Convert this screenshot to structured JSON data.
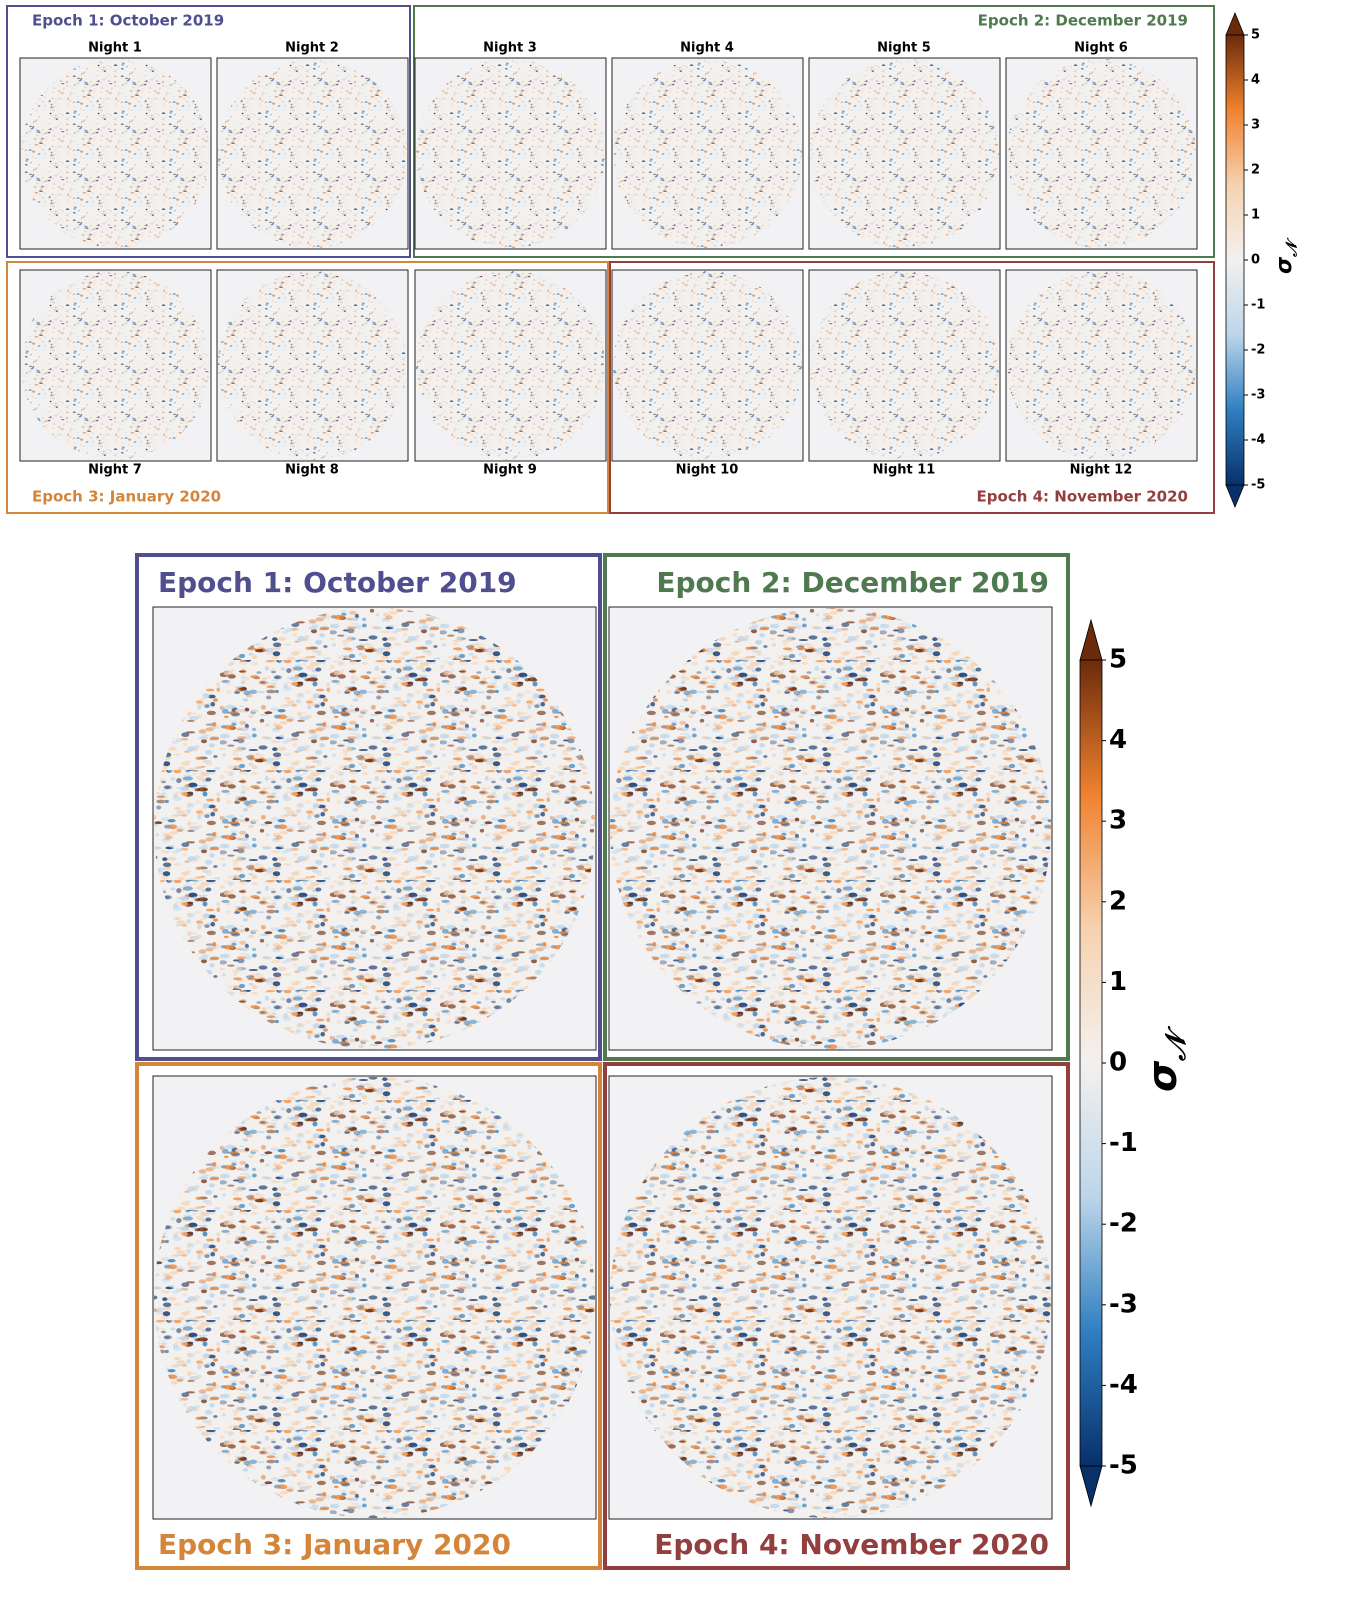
{
  "top": {
    "epochs": [
      {
        "label": "Epoch 1: October 2019",
        "color": "#4f4f8f"
      },
      {
        "label": "Epoch 2: December 2019",
        "color": "#4f7a50"
      },
      {
        "label": "Epoch 3: January 2020",
        "color": "#d4853a"
      },
      {
        "label": "Epoch 4: November 2020",
        "color": "#943f3f"
      }
    ],
    "nights": [
      "Night 1",
      "Night 2",
      "Night 3",
      "Night 4",
      "Night 5",
      "Night 6",
      "Night 7",
      "Night 8",
      "Night 9",
      "Night 10",
      "Night 11",
      "Night 12"
    ]
  },
  "bottom": {
    "epochs": [
      {
        "label": "Epoch 1: October 2019",
        "color": "#4f4f8f"
      },
      {
        "label": "Epoch 2: December 2019",
        "color": "#4f7a50"
      },
      {
        "label": "Epoch 3: January 2020",
        "color": "#d4853a"
      },
      {
        "label": "Epoch 4: November 2020",
        "color": "#943f3f"
      }
    ]
  },
  "colorbar": {
    "symbol": "σ",
    "subscript": "𝒩",
    "lim": [
      -5,
      5
    ],
    "ticks": [
      -5,
      -4,
      -3,
      -2,
      -1,
      0,
      1,
      2,
      3,
      4,
      5
    ],
    "colors": [
      "#08306b",
      "#2f7fc1",
      "#bcd5ea",
      "#f3f1ef",
      "#f6d2b0",
      "#f0822f",
      "#6b2b0b"
    ]
  }
}
